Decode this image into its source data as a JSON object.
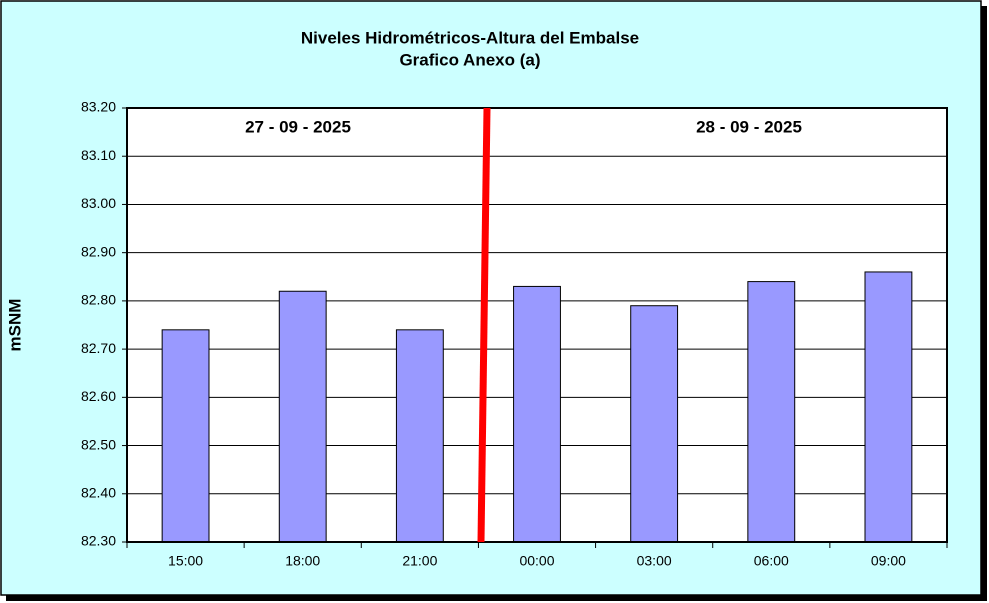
{
  "chart_data": {
    "type": "bar",
    "title": "Niveles Hidrométricos-Altura del Embalse",
    "subtitle": "Grafico Anexo (a)",
    "y_label": "mSNM",
    "annotations": [
      "27 - 09 - 2025",
      "28 - 09 - 2025"
    ],
    "categories": [
      "15:00",
      "18:00",
      "21:00",
      "00:00",
      "03:00",
      "06:00",
      "09:00"
    ],
    "values": [
      82.74,
      82.82,
      82.74,
      82.83,
      82.79,
      82.84,
      82.86
    ],
    "color": "#9999ff",
    "ylim": [
      82.3,
      83.2
    ],
    "yticks": [
      {
        "value": 82.3,
        "label": "82.30"
      },
      {
        "value": 82.4,
        "label": "82.40"
      },
      {
        "value": 82.5,
        "label": "82.50"
      },
      {
        "value": 82.6,
        "label": "82.60"
      },
      {
        "value": 82.7,
        "label": "82.70"
      },
      {
        "value": 82.8,
        "label": "82.80"
      },
      {
        "value": 82.9,
        "label": "82.90"
      },
      {
        "value": 83.0,
        "label": "83.00"
      },
      {
        "value": 83.1,
        "label": "83.10"
      },
      {
        "value": 83.2,
        "label": "83.20"
      }
    ],
    "grid": true
  }
}
